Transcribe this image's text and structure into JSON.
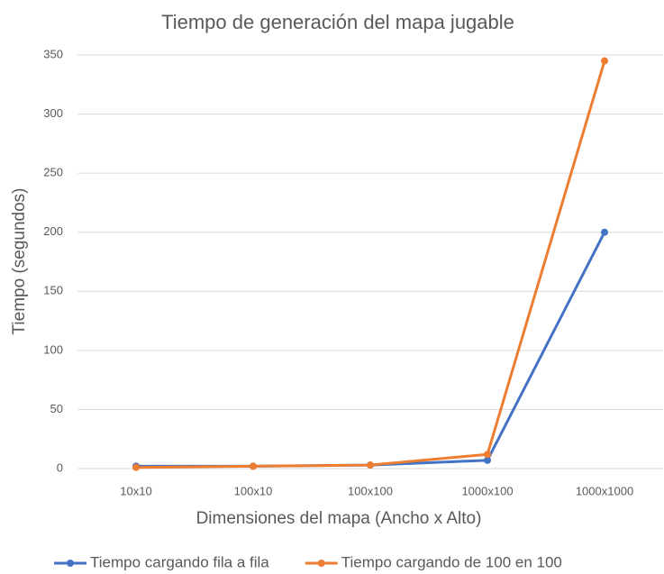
{
  "chart_data": {
    "type": "line",
    "title": "Tiempo de generación del mapa jugable",
    "x_label": "Dimensiones del mapa (Ancho x Alto)",
    "y_label": "Tiempo (segundos)",
    "categories": [
      "10x10",
      "100x10",
      "100x100",
      "1000x100",
      "1000x1000"
    ],
    "series": [
      {
        "name": "Tiempo cargando fila a fila",
        "color": "#4472c4",
        "values": [
          2,
          2,
          3,
          7,
          200
        ]
      },
      {
        "name": "Tiempo cargando de 100 en 100",
        "color": "#ed7d31",
        "values": [
          1,
          2,
          3,
          12,
          345
        ]
      }
    ],
    "ylim": [
      0,
      350
    ],
    "yticks": [
      0,
      50,
      100,
      150,
      200,
      250,
      300,
      350
    ],
    "grid": true,
    "legend": "bottom"
  }
}
